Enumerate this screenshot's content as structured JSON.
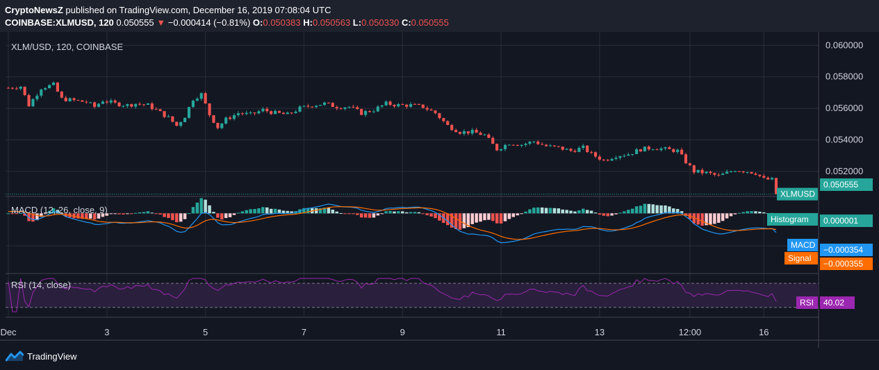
{
  "header": {
    "author": "CryptoNewsZ",
    "published_text": "published on TradingView.com, December 16, 2019 07:08:04 UTC",
    "symbol_interval": "COINBASE:XLMUSD, 120",
    "last_price": "0.050555",
    "down_arrow": "▼",
    "change": "−0.000414 (−0.81%)",
    "ohlc": [
      {
        "label": "O:",
        "value": "0.050383"
      },
      {
        "label": "H:",
        "value": "0.050563"
      },
      {
        "label": "L:",
        "value": "0.050330"
      },
      {
        "label": "C:",
        "value": "0.050555"
      }
    ]
  },
  "footer": {
    "brand": "TradingView",
    "logo_icon": "tradingview-logo-icon"
  },
  "colors": {
    "background": "#131722",
    "grid": "#2a2e39",
    "up": "#26a69a",
    "down": "#ef5350",
    "macd_line": "#2196f3",
    "signal_line": "#ff6d00",
    "hist_up_strong": "#26a69a",
    "hist_up_weak": "#b2dfdb",
    "hist_down_strong": "#ef5350",
    "hist_down_weak": "#ffcdd2",
    "rsi_line": "#9c27b0",
    "rsi_band": "#2a1f3d"
  },
  "chart_data": [
    {
      "type": "candlestick",
      "title": "XLM/USD, 120, COINBASE",
      "symbol_label": "XLMUSD",
      "last_value_label": "0.050555",
      "ylim": [
        0.05045,
        0.0605
      ],
      "y_ticks": [
        "0.060000",
        "0.058000",
        "0.056000",
        "0.054000",
        "0.052000"
      ],
      "x_tick_labels": [
        "Dec",
        "3",
        "5",
        "7",
        "9",
        "11",
        "13",
        "12:00",
        "16"
      ],
      "x_tick_positions": [
        0,
        24,
        48,
        72,
        96,
        120,
        144,
        166,
        184
      ],
      "last_price": 0.050555,
      "anchors": [
        [
          0,
          0.0573
        ],
        [
          3,
          0.0574
        ],
        [
          5,
          0.0562
        ],
        [
          8,
          0.0573
        ],
        [
          11,
          0.0575
        ],
        [
          13,
          0.0566
        ],
        [
          16,
          0.0565
        ],
        [
          19,
          0.0564
        ],
        [
          21,
          0.0561
        ],
        [
          23,
          0.0565
        ],
        [
          26,
          0.0563
        ],
        [
          29,
          0.0562
        ],
        [
          31,
          0.0563
        ],
        [
          34,
          0.0562
        ],
        [
          36,
          0.0559
        ],
        [
          39,
          0.0554
        ],
        [
          41,
          0.0549
        ],
        [
          43,
          0.0555
        ],
        [
          45,
          0.0566
        ],
        [
          47,
          0.0569
        ],
        [
          49,
          0.0556
        ],
        [
          51,
          0.0548
        ],
        [
          53,
          0.0553
        ],
        [
          56,
          0.0557
        ],
        [
          59,
          0.0556
        ],
        [
          62,
          0.0559
        ],
        [
          65,
          0.0557
        ],
        [
          68,
          0.0556
        ],
        [
          71,
          0.056
        ],
        [
          74,
          0.0562
        ],
        [
          77,
          0.0563
        ],
        [
          80,
          0.0561
        ],
        [
          83,
          0.0561
        ],
        [
          86,
          0.0557
        ],
        [
          89,
          0.0559
        ],
        [
          92,
          0.0563
        ],
        [
          95,
          0.0562
        ],
        [
          98,
          0.0562
        ],
        [
          101,
          0.0561
        ],
        [
          104,
          0.0557
        ],
        [
          107,
          0.0549
        ],
        [
          110,
          0.0545
        ],
        [
          113,
          0.0545
        ],
        [
          116,
          0.0543
        ],
        [
          119,
          0.0534
        ],
        [
          122,
          0.0538
        ],
        [
          125,
          0.0537
        ],
        [
          128,
          0.0539
        ],
        [
          131,
          0.0536
        ],
        [
          134,
          0.0535
        ],
        [
          137,
          0.0533
        ],
        [
          140,
          0.0535
        ],
        [
          142,
          0.0531
        ],
        [
          145,
          0.0527
        ],
        [
          148,
          0.053
        ],
        [
          151,
          0.0531
        ],
        [
          154,
          0.0534
        ],
        [
          157,
          0.0535
        ],
        [
          160,
          0.0534
        ],
        [
          163,
          0.0533
        ],
        [
          165,
          0.0526
        ],
        [
          167,
          0.052
        ],
        [
          170,
          0.0519
        ],
        [
          173,
          0.0517
        ],
        [
          175,
          0.0519
        ],
        [
          177,
          0.0521
        ],
        [
          180,
          0.052
        ],
        [
          182,
          0.0519
        ],
        [
          184,
          0.0515
        ],
        [
          187,
          0.05145
        ]
      ],
      "candle_count": 188
    },
    {
      "type": "macd",
      "title": "MACD (12, 26, close, 9)",
      "histogram_label": "Histogram",
      "histogram_value": "0.000001",
      "macd_label": "MACD",
      "macd_value": "−0.000354",
      "signal_label": "Signal",
      "signal_value": "−0.000355",
      "ylim": [
        -0.0011,
        0.0003
      ]
    },
    {
      "type": "rsi",
      "title": "RSI (14, close)",
      "label": "RSI",
      "value": "40.02",
      "band": [
        30,
        70
      ],
      "ylim": [
        15,
        85
      ]
    }
  ]
}
